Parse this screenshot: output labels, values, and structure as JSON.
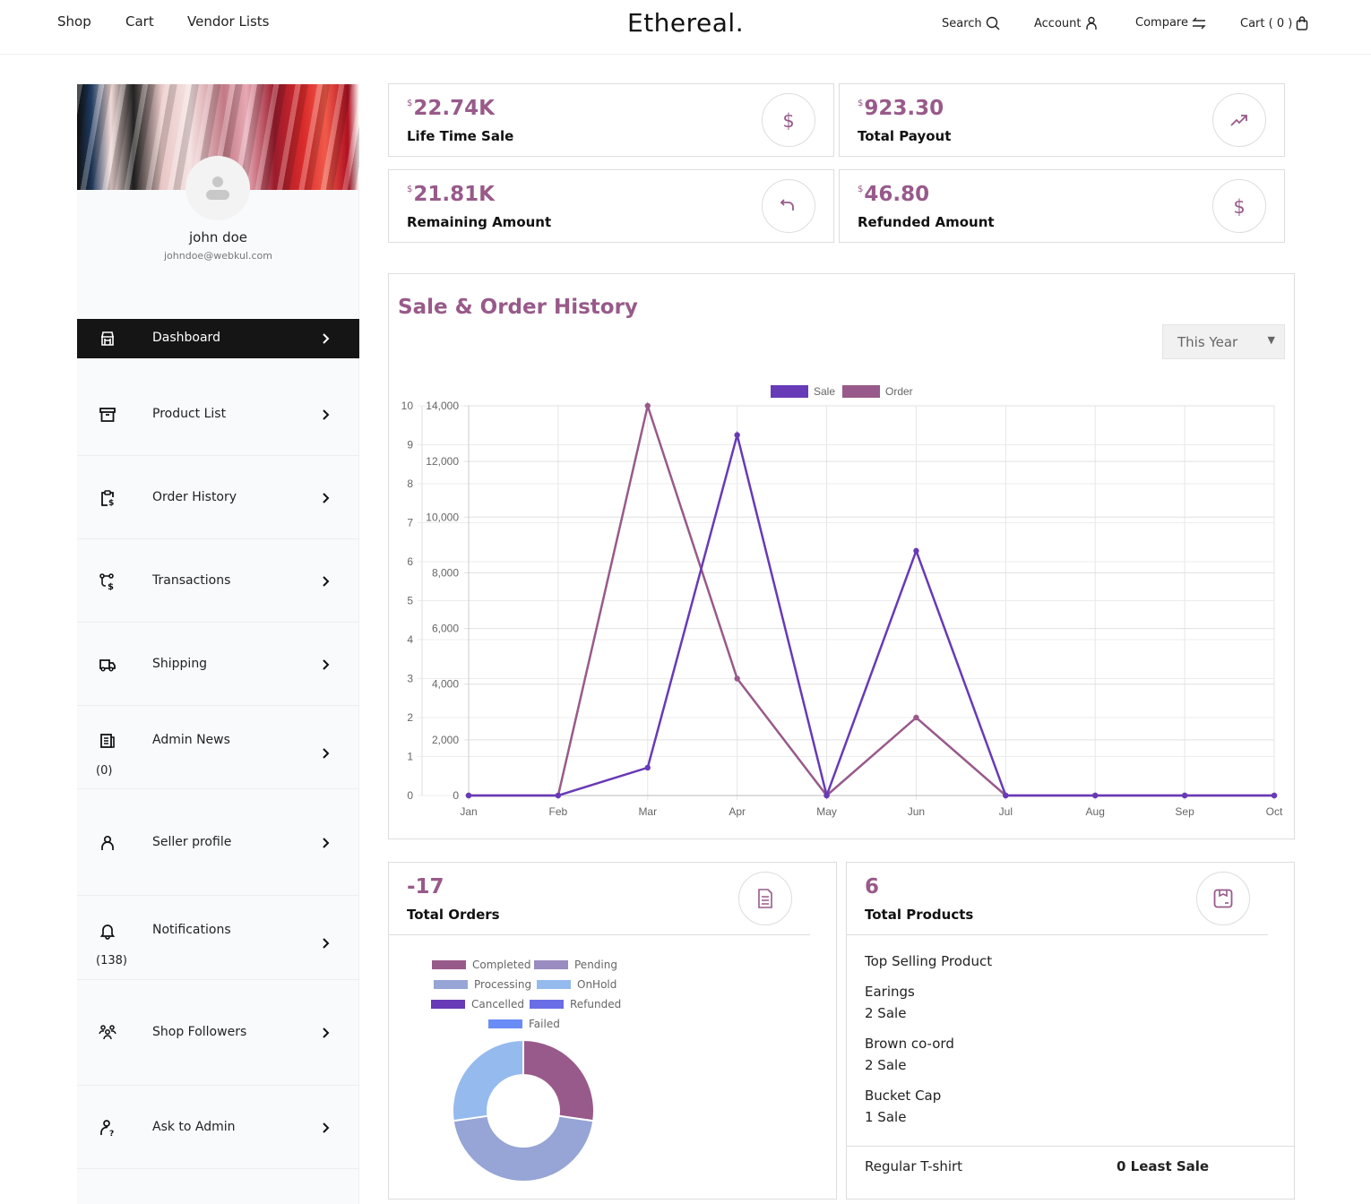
{
  "header": {
    "nav": [
      "Shop",
      "Cart",
      "Vendor Lists"
    ],
    "logo": "Ethereal.",
    "search": "Search",
    "account": "Account",
    "compare": "Compare",
    "cart": "Cart ( 0 )"
  },
  "profile": {
    "name": "john doe",
    "email": "johndoe@webkul.com"
  },
  "sidebar": {
    "items": [
      {
        "label": "Dashboard",
        "icon": "store-icon",
        "active": true
      },
      {
        "label": "Product List",
        "icon": "archive-icon"
      },
      {
        "label": "Order History",
        "icon": "clipboard-dollar-icon"
      },
      {
        "label": "Transactions",
        "icon": "transaction-icon"
      },
      {
        "label": "Shipping",
        "icon": "truck-icon"
      },
      {
        "label": "Admin News",
        "icon": "news-icon",
        "count": "(0)"
      },
      {
        "label": "Seller profile",
        "icon": "user-icon"
      },
      {
        "label": "Notifications",
        "icon": "bell-icon",
        "count": "(138)"
      },
      {
        "label": "Shop Followers",
        "icon": "users-icon"
      },
      {
        "label": "Ask to Admin",
        "icon": "user-question-icon"
      }
    ]
  },
  "stats": [
    {
      "currency": "$",
      "value": "22.74K",
      "label": "Life Time Sale",
      "icon": "dollar-icon"
    },
    {
      "currency": "$",
      "value": "923.30",
      "label": "Total Payout",
      "icon": "trending-up-icon"
    },
    {
      "currency": "$",
      "value": "21.81K",
      "label": "Remaining Amount",
      "icon": "undo-icon"
    },
    {
      "currency": "$",
      "value": "46.80",
      "label": "Refunded Amount",
      "icon": "dollar-icon"
    }
  ],
  "history": {
    "title": "Sale & Order History",
    "period": "This Year"
  },
  "chart_data": [
    {
      "type": "line",
      "title": "",
      "categories": [
        "Jan",
        "Feb",
        "Mar",
        "Apr",
        "May",
        "Jun",
        "Jul",
        "Aug",
        "Sep",
        "Oct"
      ],
      "series": [
        {
          "name": "Sale",
          "axis": "right",
          "color": "#673ab7",
          "values": [
            0,
            0,
            1000,
            12950,
            0,
            8790,
            0,
            0,
            0,
            0
          ]
        },
        {
          "name": "Order",
          "axis": "left",
          "color": "#985a8a",
          "values": [
            0,
            0,
            10,
            3,
            0,
            2,
            0,
            0,
            0,
            0
          ]
        }
      ],
      "left_axis": {
        "range": [
          0,
          10
        ],
        "ticks": [
          "0",
          "1",
          "2",
          "3",
          "4",
          "5",
          "6",
          "7",
          "8",
          "9",
          "10"
        ]
      },
      "right_axis": {
        "range": [
          0,
          14000
        ],
        "ticks": [
          "0",
          "2,000",
          "4,000",
          "6,000",
          "8,000",
          "10,000",
          "12,000",
          "14,000"
        ]
      },
      "grid": true,
      "legend": "top"
    },
    {
      "type": "pie",
      "variant": "doughnut",
      "labels": [
        "Completed",
        "Pending",
        "Processing",
        "OnHold",
        "Cancelled",
        "Refunded",
        "Failed"
      ],
      "colors": [
        "#985a8a",
        "#9a8cc0",
        "#96a4d6",
        "#95baee",
        "#673ab7",
        "#6a6ee6",
        "#6a8cf6"
      ],
      "values": [
        3,
        0,
        5,
        3,
        0,
        0,
        0
      ],
      "legend": "top"
    }
  ],
  "orders": {
    "value": "-17",
    "label": "Total Orders"
  },
  "products": {
    "value": "6",
    "label": "Total Products",
    "top_title": "Top Selling Product",
    "top": [
      {
        "name": "Earings",
        "sale": "2 Sale"
      },
      {
        "name": "Brown co-ord",
        "sale": "2 Sale"
      },
      {
        "name": "Bucket Cap",
        "sale": "1 Sale"
      }
    ],
    "least_name": "Regular T-shirt",
    "least_label": "0 Least Sale"
  }
}
